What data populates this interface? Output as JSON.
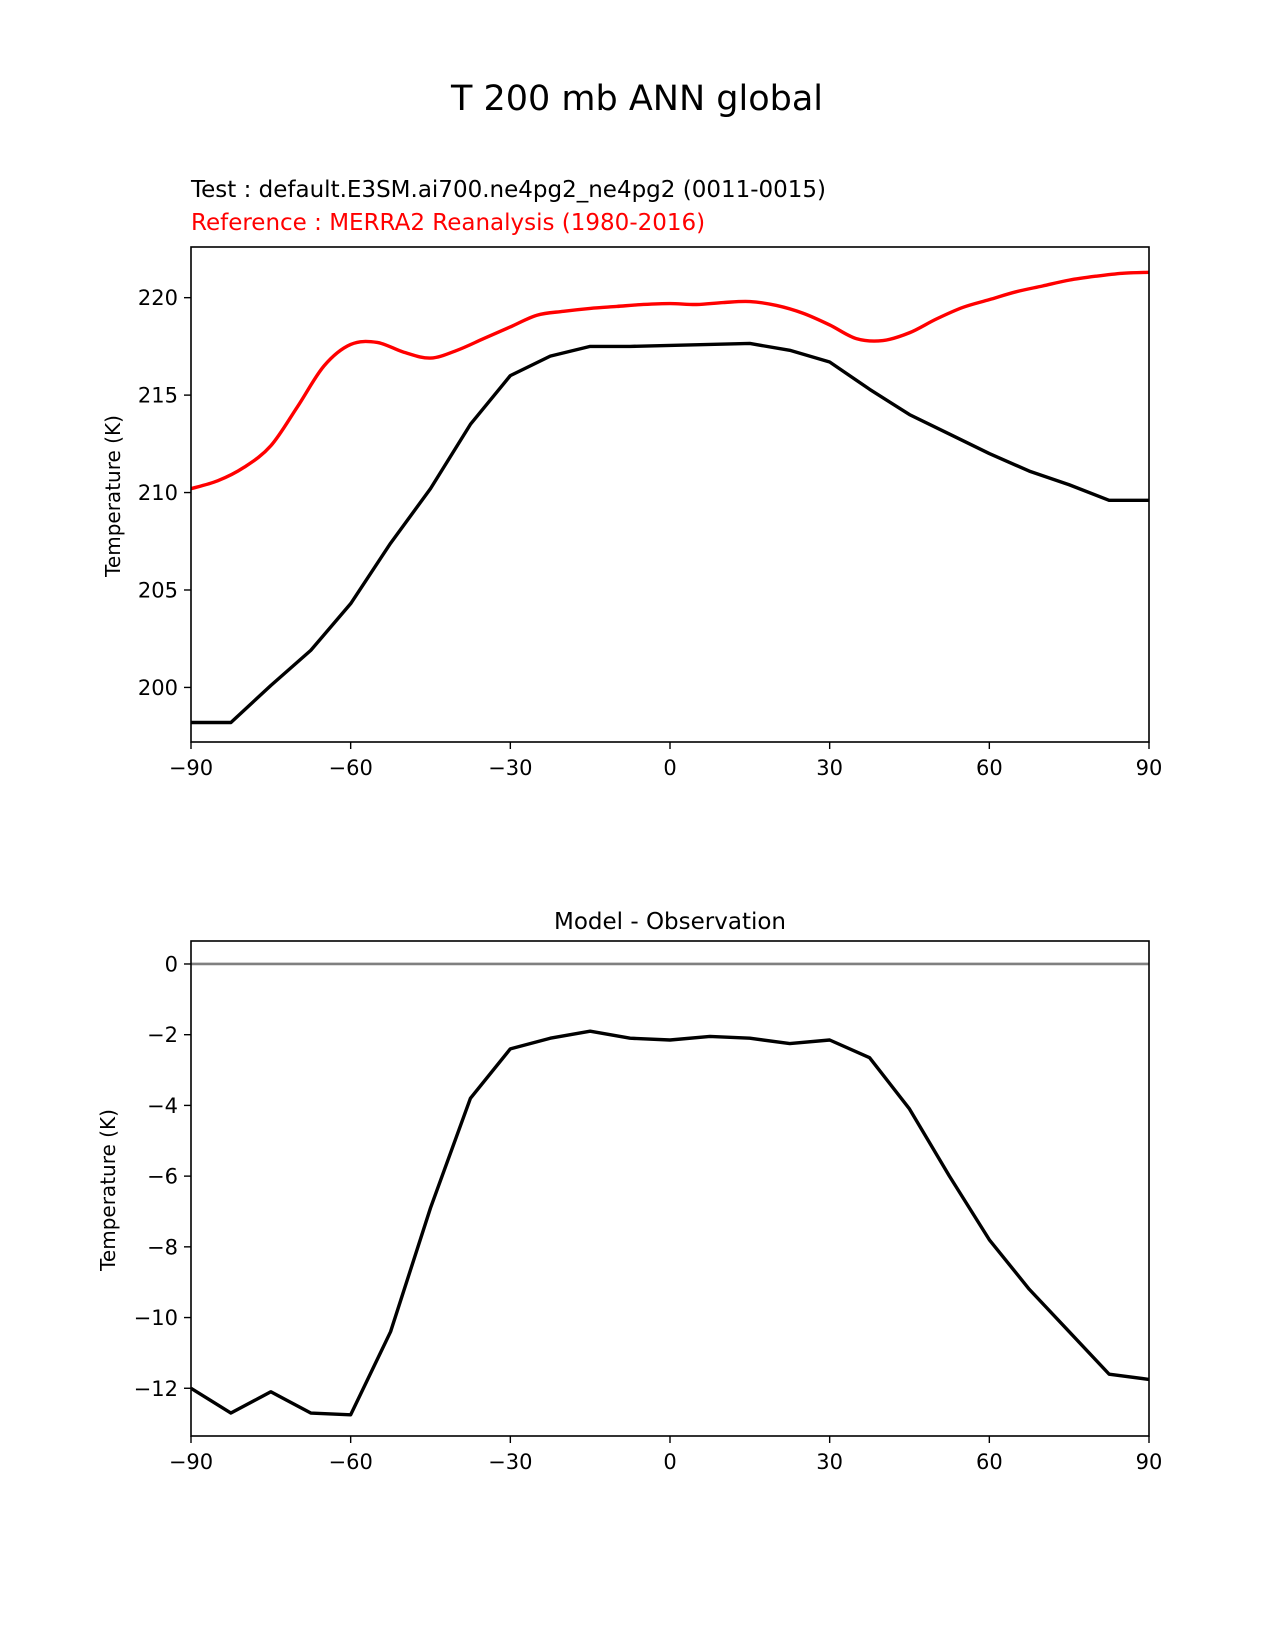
{
  "figure_title": "T 200 mb ANN global",
  "chart_data": [
    {
      "type": "line",
      "id": "top",
      "test_label": "Test : default.E3SM.ai700.ne4pg2_ne4pg2 (0011-0015)",
      "reference_label": "Reference : MERRA2 Reanalysis (1980-2016)",
      "ylabel": "Temperature (K)",
      "xlabel": "",
      "xlim": [
        -90,
        90
      ],
      "ylim": [
        197.2,
        222.6
      ],
      "xticks": [
        -90,
        -60,
        -30,
        0,
        30,
        60,
        90
      ],
      "xtick_labels": [
        "−90",
        "−60",
        "−30",
        "0",
        "30",
        "60",
        "90"
      ],
      "yticks": [
        200,
        205,
        210,
        215,
        220
      ],
      "ytick_labels": [
        "200",
        "205",
        "210",
        "215",
        "220"
      ],
      "series": [
        {
          "name": "Reference",
          "color": "#ff0000",
          "smooth": true,
          "x": [
            -90,
            -85,
            -80,
            -75,
            -70,
            -65,
            -60,
            -55,
            -50,
            -45,
            -40,
            -35,
            -30,
            -25,
            -20,
            -15,
            -10,
            -5,
            0,
            5,
            10,
            15,
            20,
            25,
            30,
            35,
            40,
            45,
            50,
            55,
            60,
            65,
            70,
            75,
            80,
            85,
            90
          ],
          "values": [
            210.2,
            210.6,
            211.3,
            212.4,
            214.4,
            216.5,
            217.6,
            217.7,
            217.2,
            216.9,
            217.3,
            217.9,
            218.5,
            219.1,
            219.3,
            219.45,
            219.55,
            219.65,
            219.7,
            219.65,
            219.75,
            219.8,
            219.6,
            219.2,
            218.6,
            217.9,
            217.8,
            218.2,
            218.9,
            219.5,
            219.9,
            220.3,
            220.6,
            220.9,
            221.1,
            221.25,
            221.3
          ]
        },
        {
          "name": "Test",
          "color": "#000000",
          "smooth": false,
          "x": [
            -90,
            -82.5,
            -75,
            -67.5,
            -60,
            -52.5,
            -45,
            -37.5,
            -30,
            -22.5,
            -15,
            -7.5,
            0,
            7.5,
            15,
            22.5,
            30,
            37.5,
            45,
            52.5,
            60,
            67.5,
            75,
            82.5,
            90
          ],
          "values": [
            198.2,
            198.2,
            200.1,
            201.9,
            204.3,
            207.4,
            210.2,
            213.5,
            216.0,
            217.0,
            217.5,
            217.5,
            217.55,
            217.6,
            217.65,
            217.3,
            216.7,
            215.3,
            214.0,
            213.0,
            212.0,
            211.1,
            210.4,
            209.6,
            209.6
          ]
        }
      ]
    },
    {
      "type": "line",
      "id": "bottom",
      "title": "Model - Observation",
      "ylabel": "Temperature (K)",
      "xlabel": "",
      "xlim": [
        -90,
        90
      ],
      "ylim": [
        -13.35,
        0.65
      ],
      "xticks": [
        -90,
        -60,
        -30,
        0,
        30,
        60,
        90
      ],
      "xtick_labels": [
        "−90",
        "−60",
        "−30",
        "0",
        "30",
        "60",
        "90"
      ],
      "yticks": [
        0,
        -2,
        -4,
        -6,
        -8,
        -10,
        -12
      ],
      "ytick_labels": [
        "0",
        "−2",
        "−4",
        "−6",
        "−8",
        "−10",
        "−12"
      ],
      "zero_line": {
        "value": 0,
        "color": "#808080"
      },
      "series": [
        {
          "name": "Difference",
          "color": "#000000",
          "smooth": false,
          "x": [
            -90,
            -82.5,
            -75,
            -67.5,
            -60,
            -52.5,
            -45,
            -37.5,
            -30,
            -22.5,
            -15,
            -7.5,
            0,
            7.5,
            15,
            22.5,
            30,
            37.5,
            45,
            52.5,
            60,
            67.5,
            75,
            82.5,
            90
          ],
          "values": [
            -12.0,
            -12.7,
            -12.1,
            -12.7,
            -12.75,
            -10.4,
            -6.9,
            -3.8,
            -2.4,
            -2.1,
            -1.9,
            -2.1,
            -2.15,
            -2.05,
            -2.1,
            -2.25,
            -2.15,
            -2.65,
            -4.1,
            -6.0,
            -7.8,
            -9.2,
            -10.4,
            -11.6,
            -11.75
          ]
        }
      ]
    }
  ]
}
